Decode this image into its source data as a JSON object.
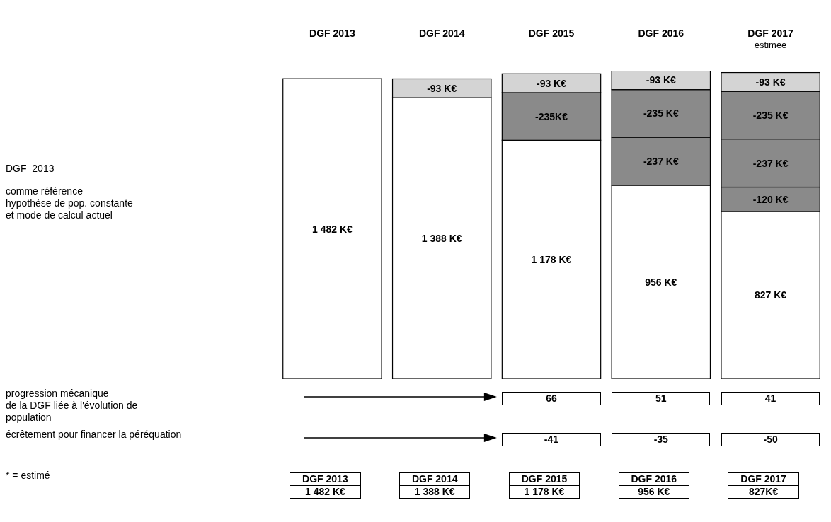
{
  "chart_data": {
    "type": "bar",
    "stacked": true,
    "categories": [
      "DGF 2013",
      "DGF 2014",
      "DGF 2015",
      "DGF 2016",
      "DGF 2017\nestimée"
    ],
    "series": [
      {
        "color": "#ffffff",
        "values": [
          1482,
          1388,
          1178,
          956,
          827
        ],
        "value_labels": [
          "1 482 K€",
          "1 388 K€",
          "1 178 K€",
          "956 K€",
          "827 K€"
        ]
      },
      {
        "color": "#8a8a8a",
        "values": [
          null,
          null,
          null,
          null,
          120
        ]
      },
      {
        "color": "#8a8a8a",
        "values": [
          null,
          null,
          null,
          237,
          237
        ]
      },
      {
        "color": "#8a8a8a",
        "values": [
          null,
          null,
          235,
          235,
          235
        ]
      },
      {
        "color": "#d4d4d4",
        "values": [
          null,
          93,
          93,
          93,
          93
        ]
      }
    ],
    "annotations": [
      "DGF  2013",
      "comme référence\nhypothèse de pop. constante\net mode de calcul actuel",
      "progression mécanique\nde la DGF liée à l'évolution de\npopulation",
      "66",
      "51",
      "41",
      "écrêtement pour financer la péréquation",
      "-41",
      "-35",
      "-50",
      "* = estimé",
      "DGF 2013\n1 482 K€",
      "DGF 2014\n1 388 K€",
      "DGF 2015\n1 178 K€",
      "DGF 2016\n956 K€",
      "DGF 2017\n827K€",
      {
        "text": "-93 K€",
        "x": "DGF 2014",
        "y": 1481
      },
      {
        "text": "-93 K€",
        "x": "DGF 2015",
        "y": 1506
      },
      {
        "text": "-235K€",
        "x": "DGF 2015",
        "y": 1413
      },
      {
        "text": "-93 K€",
        "x": "DGF 2016",
        "y": 1521
      },
      {
        "text": "-235 K€",
        "x": "DGF 2016",
        "y": 1428
      },
      {
        "text": "-237 K€",
        "x": "DGF 2016",
        "y": 1193
      },
      {
        "text": "-93 K€",
        "x": "DGF 2017\nestimée",
        "y": 1512
      },
      {
        "text": "-235 K€",
        "x": "DGF 2017\nestimée",
        "y": 1419
      },
      {
        "text": "-237 K€",
        "x": "DGF 2017\nestimée",
        "y": 1184
      },
      {
        "text": "-120 K€",
        "x": "DGF 2017\nestimée",
        "y": 947
      }
    ]
  }
}
